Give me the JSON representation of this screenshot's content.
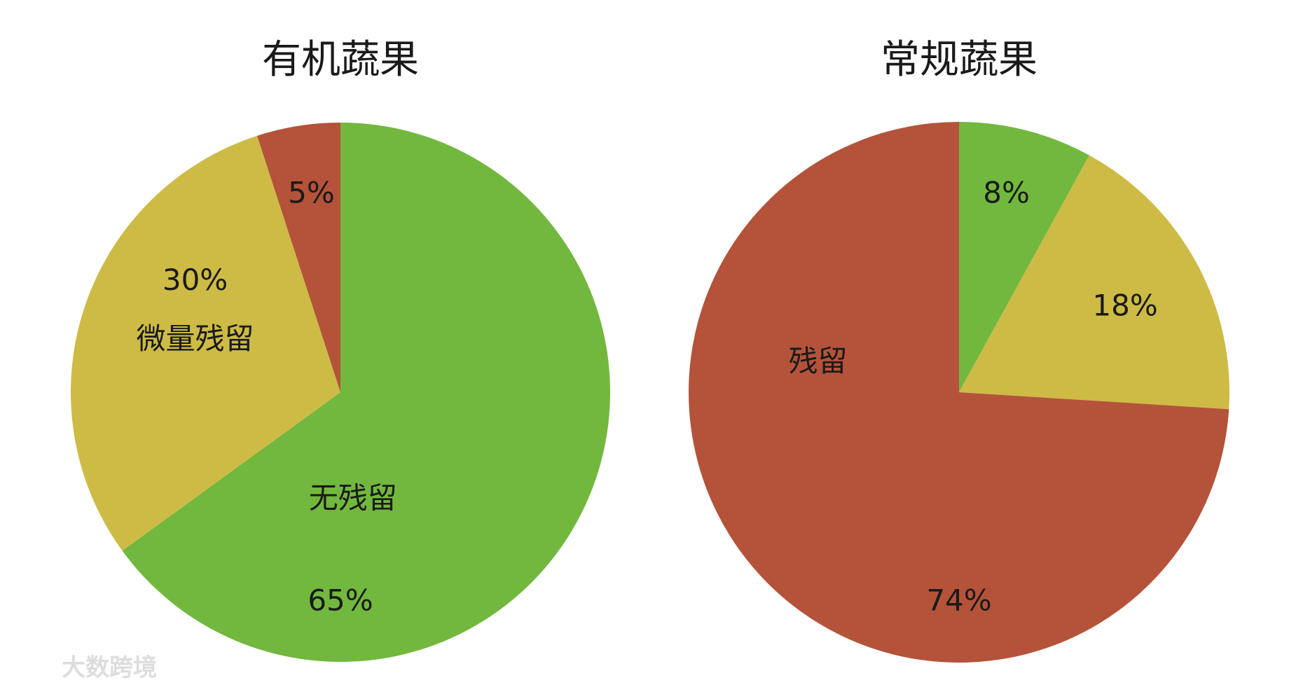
{
  "chart_data": [
    {
      "type": "pie",
      "title": "有机蔬果",
      "categories": [
        "无残留",
        "微量残留",
        null
      ],
      "values": [
        65,
        30,
        5
      ],
      "value_labels": [
        "65%",
        "30%",
        "5%"
      ],
      "colors": [
        "#72b83e",
        "#cdbb45",
        "#b4533a"
      ]
    },
    {
      "type": "pie",
      "title": "常规蔬果",
      "categories": [
        null,
        null,
        "残留"
      ],
      "values": [
        8,
        18,
        74
      ],
      "value_labels": [
        "8%",
        "18%",
        "74%"
      ],
      "colors": [
        "#72b83e",
        "#cdbb45",
        "#b4533a"
      ]
    }
  ],
  "watermark": "大数跨境"
}
